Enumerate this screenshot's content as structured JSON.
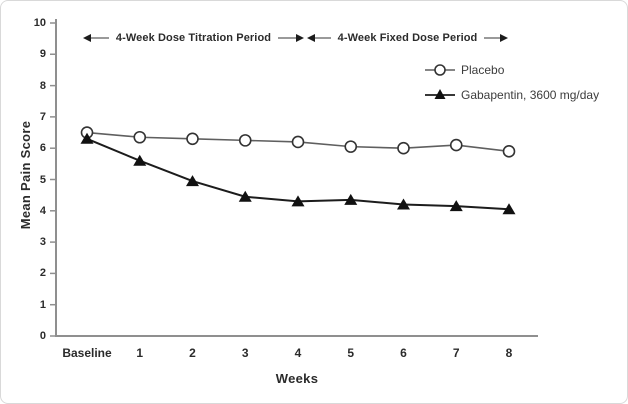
{
  "chart_data": {
    "type": "line",
    "title": "",
    "xlabel": "Weeks",
    "ylabel": "Mean Pain Score",
    "categories": [
      "Baseline",
      "1",
      "2",
      "3",
      "4",
      "5",
      "6",
      "7",
      "8"
    ],
    "series": [
      {
        "name": "Placebo",
        "marker": "open-circle",
        "line_color": "#5f5f5f",
        "marker_stroke": "#333333",
        "marker_fill": "#ffffff",
        "values": [
          6.5,
          6.35,
          6.3,
          6.25,
          6.2,
          6.05,
          6.0,
          6.1,
          5.9
        ]
      },
      {
        "name": "Gabapentin, 3600 mg/day",
        "marker": "filled-triangle",
        "line_color": "#1c1c1c",
        "marker_stroke": "#111111",
        "marker_fill": "#111111",
        "values": [
          6.3,
          5.6,
          4.95,
          4.45,
          4.3,
          4.35,
          4.2,
          4.15,
          4.05
        ]
      }
    ],
    "ylim": [
      0,
      10
    ],
    "ytick_step": 1,
    "grid": false,
    "legend_position": "upper-right",
    "annotations": [
      "4-Week Dose Titration Period",
      "4-Week Fixed Dose Period"
    ]
  },
  "colors": {
    "axis": "#8f8f8f",
    "text": "#2b2b2b",
    "annotation_line": "#9a9a9a",
    "arrowhead": "#1c1c1c",
    "figure_border": "#d9d9d9"
  }
}
